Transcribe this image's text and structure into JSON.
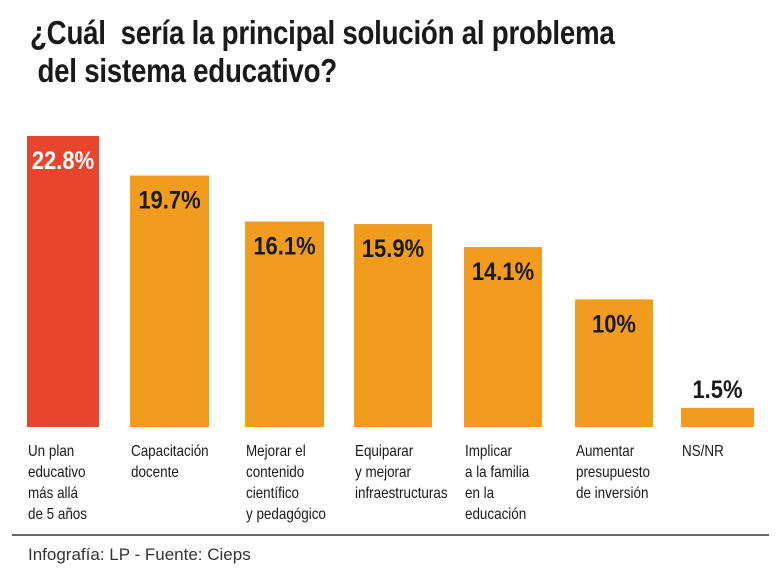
{
  "chart_data": {
    "type": "bar",
    "title_lines": [
      "¿Cuál  sería la principal solución al problema",
      " del sistema educativo?"
    ],
    "categories": [
      [
        "Un plan",
        "educativo",
        "más allá",
        "de 5 años"
      ],
      [
        "Capacitación",
        "docente"
      ],
      [
        "Mejorar el",
        "contenido",
        "científico",
        "y pedagógico"
      ],
      [
        "Equiparar",
        "y mejorar",
        "infraestructuras"
      ],
      [
        "Implicar",
        "a la familia",
        "en la",
        "educación"
      ],
      [
        "Aumentar",
        "presupuesto",
        "de inversión"
      ],
      [
        "NS/NR"
      ]
    ],
    "values": [
      22.8,
      19.7,
      16.1,
      15.9,
      14.1,
      10,
      1.5
    ],
    "data_labels": [
      "22.8%",
      "19.7%",
      "16.1%",
      "15.9%",
      "14.1%",
      "10%",
      "1.5%"
    ],
    "colors": [
      "#e8452f",
      "#f29c1f",
      "#f29c1f",
      "#f29c1f",
      "#f29c1f",
      "#f29c1f",
      "#f29c1f"
    ],
    "highlight_label_color": "#ffffff",
    "label_color": "#1a1a1a",
    "ylim": [
      0,
      22.8
    ],
    "grid": false,
    "legend": "none"
  },
  "footer": "Infografía: LP  - Fuente: Cieps"
}
